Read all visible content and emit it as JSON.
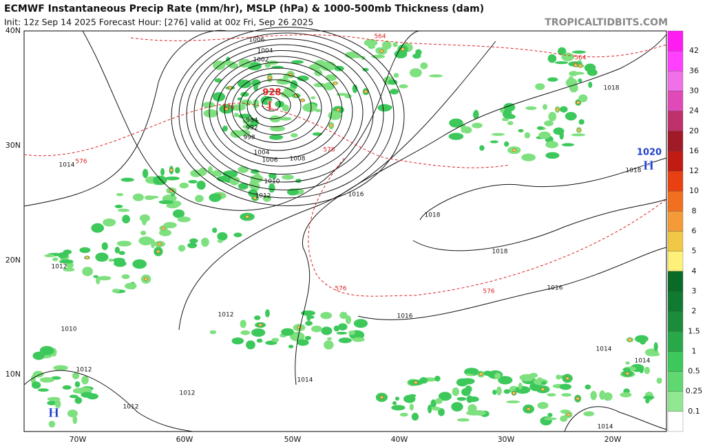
{
  "header": {
    "title": "ECMWF Instantaneous Precip Rate (mm/hr), MSLP (hPa) & 1000-500mb Thickness (dam)",
    "subtitle": "Init: 12z Sep 14 2025   Forecast Hour: [276]   valid at 00z Fri, Sep 26 2025",
    "site": "TROPICALTIDBITS.COM"
  },
  "axes": {
    "lat_labels": [
      "40N",
      "30N",
      "20N",
      "10N"
    ],
    "lon_labels": [
      "70W",
      "60W",
      "50W",
      "40W",
      "30W",
      "20W"
    ]
  },
  "colorbar": {
    "labels": [
      "42",
      "36",
      "30",
      "24",
      "20",
      "16",
      "12",
      "10",
      "8",
      "6",
      "5",
      "4",
      "3",
      "2",
      "1.5",
      "1",
      "0.5",
      "0.25",
      "0.1"
    ]
  },
  "contour_labels": [
    "1006",
    "1004",
    "1002",
    "984",
    "992",
    "998",
    "1004",
    "1006",
    "1008",
    "1010",
    "1012",
    "1014",
    "1016",
    "1018",
    "1018",
    "1016",
    "1016",
    "1014",
    "1012",
    "1012",
    "1010",
    "1012",
    "1012",
    "1012",
    "1018",
    "1018",
    "1014",
    "1014",
    "1014"
  ],
  "thickness_labels": [
    "564",
    "564",
    "576",
    "576",
    "576",
    "576",
    "576"
  ],
  "systems": [
    {
      "symbol": "L",
      "pressure": "928"
    },
    {
      "symbol": "H",
      "pressure": "1020"
    },
    {
      "symbol": "H"
    }
  ]
}
